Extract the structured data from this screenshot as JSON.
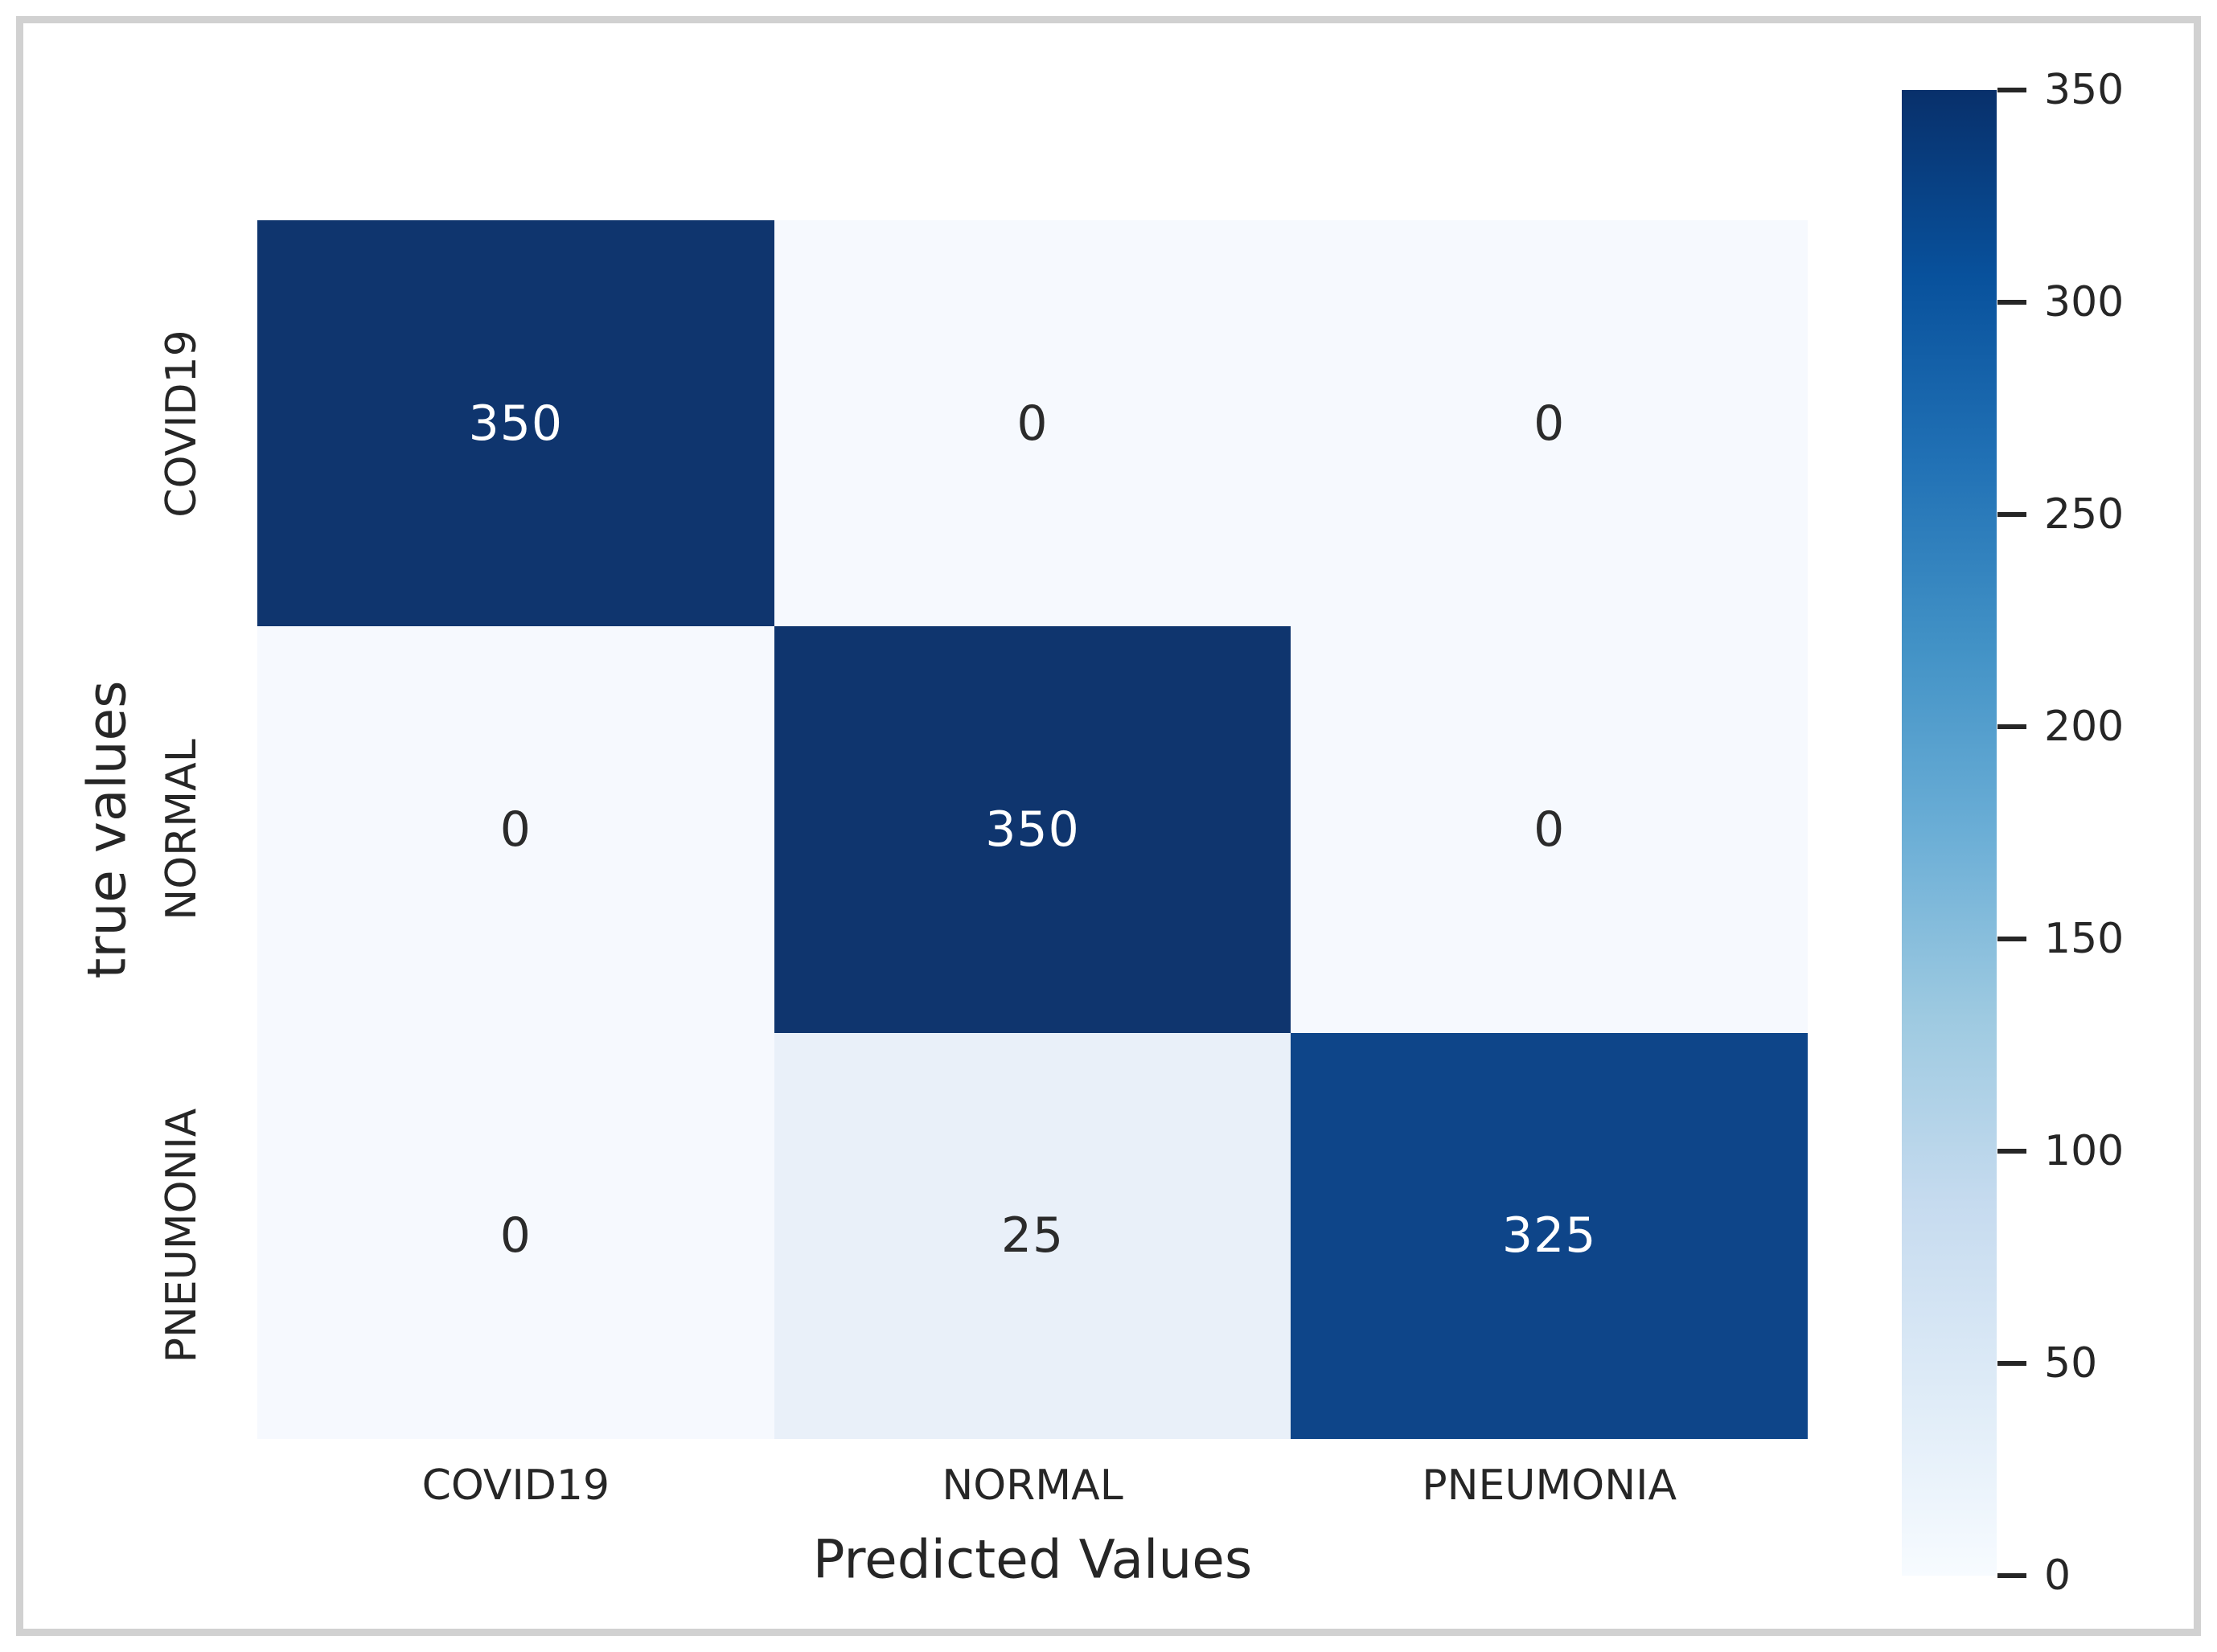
{
  "chart_data": {
    "type": "heatmap",
    "title": "",
    "xlabel": "Predicted Values",
    "ylabel": "true values",
    "x_categories": [
      "COVID19",
      "NORMAL",
      "PNEUMONIA"
    ],
    "y_categories": [
      "COVID19",
      "NORMAL",
      "PNEUMONIA"
    ],
    "matrix": [
      [
        350,
        0,
        0
      ],
      [
        0,
        350,
        0
      ],
      [
        0,
        25,
        325
      ]
    ],
    "cell_colors": [
      [
        "#0f356e",
        "#f6f9fe",
        "#f6f9fe"
      ],
      [
        "#f6f9fe",
        "#0f356e",
        "#f6f9fe"
      ],
      [
        "#f6f9fe",
        "#e9f0f9",
        "#0e4589"
      ]
    ],
    "cell_text_colors": [
      [
        "#ffffff",
        "#2b2b2b",
        "#2b2b2b"
      ],
      [
        "#2b2b2b",
        "#ffffff",
        "#2b2b2b"
      ],
      [
        "#2b2b2b",
        "#2b2b2b",
        "#ffffff"
      ]
    ],
    "colormap": "Blues",
    "grid": false,
    "legend_position": "right-colorbar",
    "colorbar": {
      "min": 0,
      "max": 350,
      "ticks": [
        350,
        300,
        250,
        200,
        150,
        100,
        50,
        0
      ],
      "gradient_top_to_bottom": [
        "#08306b",
        "#08519c",
        "#2171b5",
        "#4292c6",
        "#6baed6",
        "#9ecae1",
        "#c6dbef",
        "#deebf7",
        "#f7fbff"
      ]
    }
  },
  "frame": {
    "border_color": "#d1d1d1"
  }
}
